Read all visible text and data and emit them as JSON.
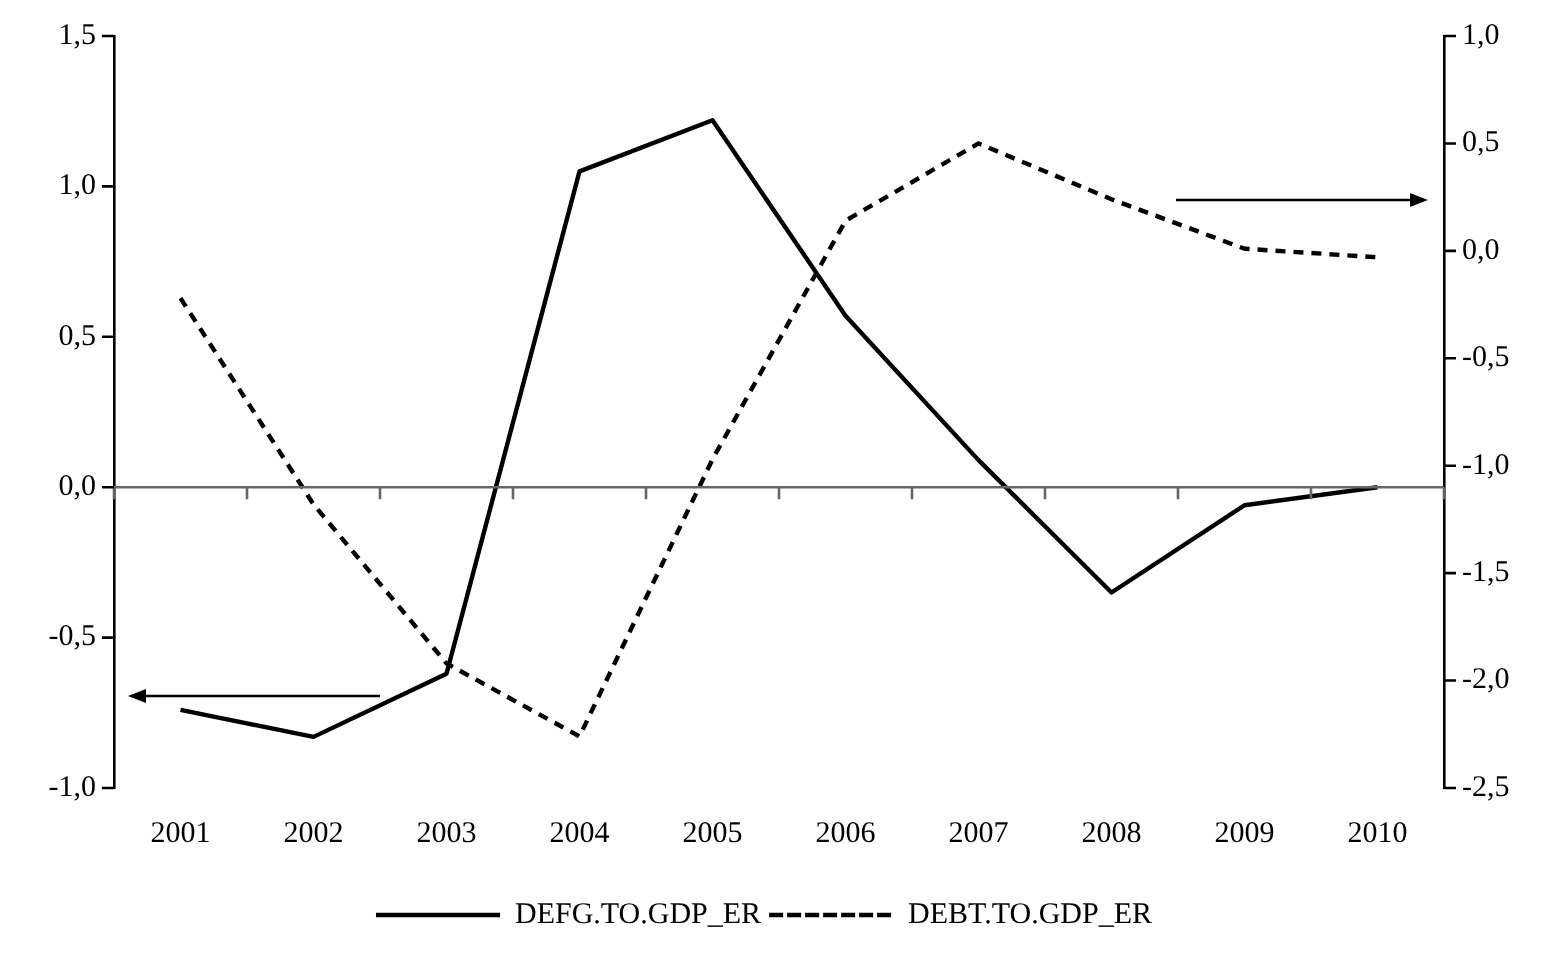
{
  "chart_data": {
    "type": "line",
    "categories": [
      "2001",
      "2002",
      "2003",
      "2004",
      "2005",
      "2006",
      "2007",
      "2008",
      "2009",
      "2010"
    ],
    "series": [
      {
        "name": "DEFG.TO.GDP_ER",
        "color": "#000000",
        "line_style": "solid",
        "values": [
          -0.74,
          -0.83,
          -0.62,
          1.05,
          1.22,
          0.57,
          0.09,
          -0.35,
          -0.06,
          0.0
        ]
      },
      {
        "name": "DEBT.TO.GDP_ER",
        "color": "#000000",
        "line_style": "dashed",
        "axis": "y2",
        "values": [
          -0.22,
          -1.18,
          -1.92,
          -2.26,
          -0.97,
          0.14,
          0.5,
          0.24,
          0.01,
          -0.03
        ]
      }
    ],
    "ylim": [
      -1.0,
      1.5
    ],
    "yticks": [
      {
        "value": -1.0,
        "label": "-1,0"
      },
      {
        "value": -0.5,
        "label": "-0,5"
      },
      {
        "value": 0.0,
        "label": "0,0"
      },
      {
        "value": 0.5,
        "label": "0,5"
      },
      {
        "value": 1.0,
        "label": "1,0"
      },
      {
        "value": 1.5,
        "label": "1,5"
      }
    ],
    "y2lim": [
      -2.5,
      1.0
    ],
    "y2ticks": [
      {
        "value": -2.5,
        "label": "-2,5"
      },
      {
        "value": -2.0,
        "label": "-2,0"
      },
      {
        "value": -1.5,
        "label": "-1,5"
      },
      {
        "value": -1.0,
        "label": "-1,0"
      },
      {
        "value": -0.5,
        "label": "-0,5"
      },
      {
        "value": 0.0,
        "label": "0,0"
      },
      {
        "value": 0.5,
        "label": "0,5"
      },
      {
        "value": 1.0,
        "label": "1,0"
      }
    ],
    "legend": "bottom",
    "marker": "none"
  }
}
